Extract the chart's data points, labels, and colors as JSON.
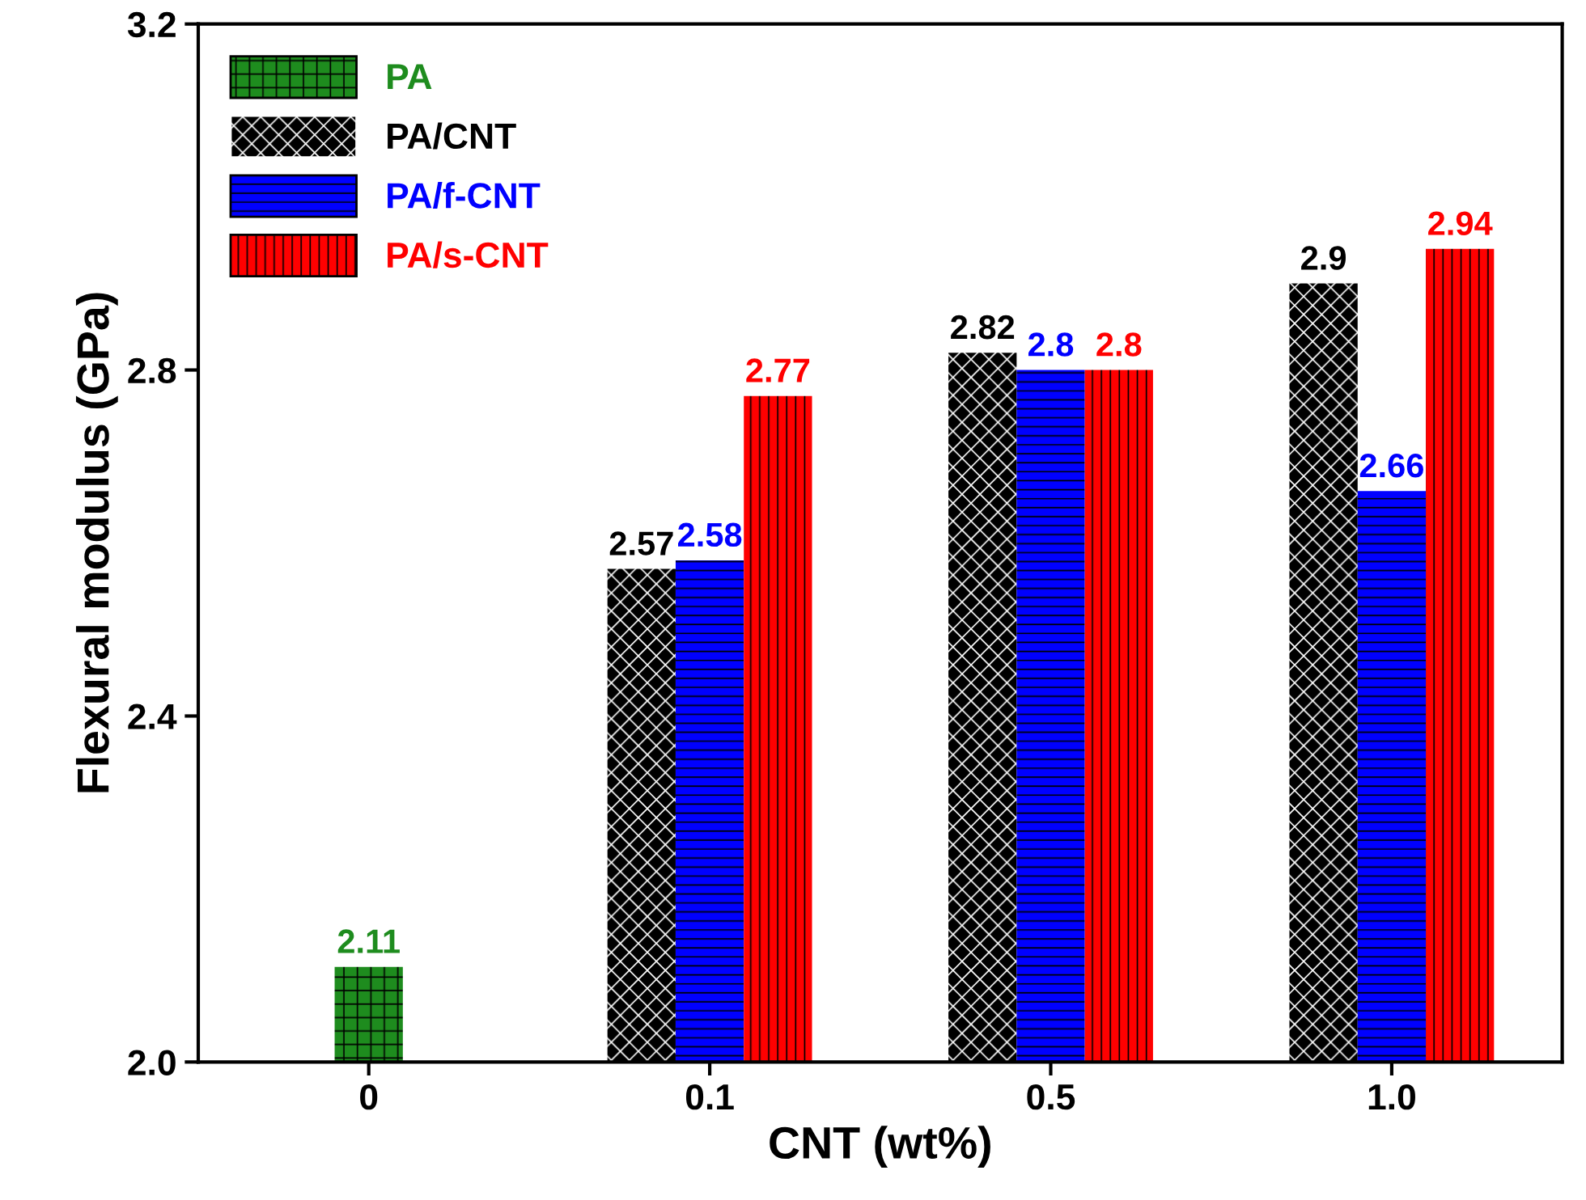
{
  "chart_data": {
    "type": "bar",
    "xlabel": "CNT (wt%)",
    "ylabel": "Flexural modulus (GPa)",
    "categories": [
      "0",
      "0.1",
      "0.5",
      "1.0"
    ],
    "series": [
      {
        "name": "PA",
        "color": "#1e8c1e",
        "values": [
          2.11,
          null,
          null,
          null
        ]
      },
      {
        "name": "PA/CNT",
        "color": "#000000",
        "values": [
          null,
          2.57,
          2.82,
          2.9
        ]
      },
      {
        "name": "PA/f-CNT",
        "color": "#0000ff",
        "values": [
          null,
          2.58,
          2.8,
          2.66
        ]
      },
      {
        "name": "PA/s-CNT",
        "color": "#ff0000",
        "values": [
          null,
          2.77,
          2.8,
          2.94
        ]
      }
    ],
    "ylim": [
      2.0,
      3.2
    ],
    "yticks": [
      {
        "value": 2.0,
        "label": "2.0"
      },
      {
        "value": 2.4,
        "label": "2.4"
      },
      {
        "value": 2.8,
        "label": "2.8"
      },
      {
        "value": 3.2,
        "label": "3.2"
      }
    ],
    "data_labels": true,
    "legend": "top left",
    "grid": false
  }
}
